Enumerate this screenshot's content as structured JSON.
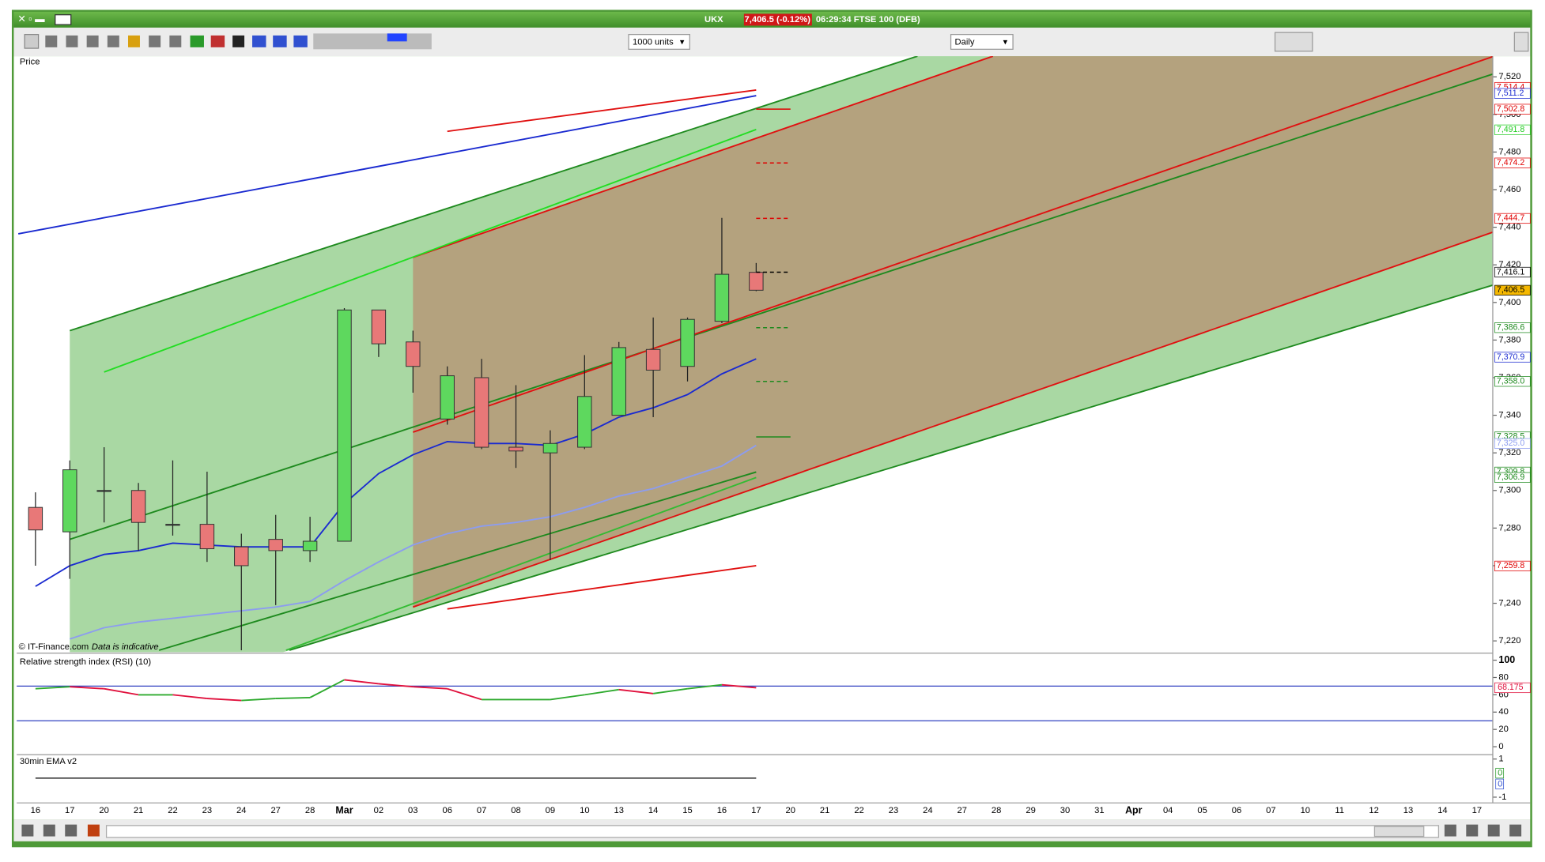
{
  "window": {
    "title": "UKX",
    "price": "7,406.5 (-0.12%)",
    "info": "06:29:34 FTSE 100 (DFB)"
  },
  "toolbar": {
    "units": "1000 units",
    "period": "Daily"
  },
  "footer": {
    "copyright": "© IT-Finance.com",
    "note": "Data is indicative"
  },
  "chart_data": [
    {
      "type": "candlestick",
      "title": "Price",
      "categories": [
        "16",
        "17",
        "20",
        "21",
        "22",
        "23",
        "24",
        "27",
        "28",
        "Mar",
        "02",
        "03",
        "06",
        "07",
        "08",
        "09",
        "10",
        "13",
        "14",
        "15",
        "16",
        "17",
        "20",
        "21",
        "22",
        "23",
        "24",
        "27",
        "28",
        "29",
        "30",
        "31",
        "Apr",
        "04",
        "05",
        "06",
        "07",
        "10",
        "11",
        "12",
        "13",
        "14",
        "17"
      ],
      "open": [
        7291,
        7278,
        7300,
        7300,
        7282,
        7282,
        7270,
        7274,
        7268,
        7273,
        7396,
        7379,
        7338,
        7360,
        7323,
        7320,
        7323,
        7340,
        7375,
        7366,
        7390,
        7416,
        null,
        null,
        null,
        null,
        null,
        null,
        null,
        null,
        null,
        null,
        null,
        null,
        null,
        null,
        null,
        null,
        null,
        null,
        null,
        null,
        null
      ],
      "high": [
        7299,
        7316,
        7323,
        7304,
        7316,
        7310,
        7277,
        7287,
        7286,
        7397,
        7396,
        7385,
        7366,
        7370,
        7356,
        7332,
        7372,
        7379,
        7392,
        7392,
        7445,
        7421,
        null,
        null,
        null,
        null,
        null,
        null,
        null,
        null,
        null,
        null,
        null,
        null,
        null,
        null,
        null,
        null,
        null,
        null,
        null,
        null,
        null
      ],
      "low": [
        7260,
        7253,
        7283,
        7268,
        7276,
        7262,
        7215,
        7239,
        7262,
        7273,
        7371,
        7352,
        7335,
        7322,
        7312,
        7263,
        7322,
        7340,
        7339,
        7358,
        7389,
        7406,
        null,
        null,
        null,
        null,
        null,
        null,
        null,
        null,
        null,
        null,
        null,
        null,
        null,
        null,
        null,
        null,
        null,
        null,
        null,
        null,
        null
      ],
      "close": [
        7279,
        7311,
        7300,
        7283,
        7282,
        7269,
        7260,
        7268,
        7273,
        7396,
        7378,
        7366,
        7361,
        7323,
        7321,
        7325,
        7350,
        7376,
        7364,
        7391,
        7415,
        7406.5,
        null,
        null,
        null,
        null,
        null,
        null,
        null,
        null,
        null,
        null,
        null,
        null,
        null,
        null,
        null,
        null,
        null,
        null,
        null,
        null,
        null
      ],
      "up_color": "#5ed85e",
      "down_color": "#e87878",
      "series": [
        {
          "color": "#1a2ad0",
          "values": [
            7249,
            7260,
            7266,
            7268,
            7272,
            7271,
            7270,
            7270,
            7270,
            7293,
            7309,
            7319,
            7326,
            7325,
            7325,
            7324,
            7330,
            7339,
            7344,
            7351,
            7362,
            7370,
            null,
            null,
            null,
            null,
            null,
            null,
            null,
            null,
            null,
            null,
            null,
            null,
            null,
            null,
            null,
            null,
            null,
            null,
            null,
            null,
            null
          ]
        },
        {
          "color": "#8c9cf0",
          "values": [
            null,
            7221,
            7227,
            7230,
            7232,
            7234,
            7236,
            7238,
            7241,
            7252,
            7262,
            7271,
            7277,
            7281,
            7283,
            7286,
            7291,
            7297,
            7301,
            7307,
            7313,
            7324,
            null,
            null,
            null,
            null,
            null,
            null,
            null,
            null,
            null,
            null,
            null,
            null,
            null,
            null,
            null,
            null,
            null,
            null,
            null,
            null,
            null
          ]
        }
      ],
      "trendlines": [
        {
          "color": "#1e8a1e",
          "points": [
            [
              1,
              7385
            ],
            [
              25.7,
              7531
            ]
          ]
        },
        {
          "color": "#1e8a1e",
          "points": [
            [
              7.4,
              7215
            ],
            [
              42.5,
              7409.4
            ]
          ]
        },
        {
          "color": "#1e8a1e",
          "points": [
            [
              1,
              7274
            ],
            [
              42.5,
              7521.7
            ]
          ]
        },
        {
          "color": "#e01010",
          "points": [
            [
              11,
              7424
            ],
            [
              27.9,
              7531
            ]
          ]
        },
        {
          "color": "#e01010",
          "points": [
            [
              11,
              7331
            ],
            [
              42.5,
              7531
            ]
          ]
        },
        {
          "color": "#e01010",
          "points": [
            [
              11,
              7238
            ],
            [
              42.5,
              7437.6
            ]
          ]
        },
        {
          "color": "#22dd22",
          "points": [
            [
              2,
              7363
            ],
            [
              21,
              7492
            ]
          ]
        },
        {
          "color": "#e01010",
          "points": [
            [
              12,
              7491
            ],
            [
              21,
              7513
            ]
          ]
        },
        {
          "color": "#1a2ad0",
          "points": [
            [
              -0.5,
              7436.5
            ],
            [
              21,
              7510
            ]
          ]
        },
        {
          "color": "#e01010",
          "points": [
            [
              12,
              7237
            ],
            [
              21,
              7260
            ]
          ]
        },
        {
          "color": "#1e8a1e",
          "points": [
            [
              3.6,
              7215
            ],
            [
              21,
              7309.8
            ]
          ]
        },
        {
          "color": "#33bb33",
          "points": [
            [
              7.3,
              7215
            ],
            [
              21,
              7306.9
            ]
          ]
        }
      ],
      "green_fill": "#a9d8a3",
      "brown_fill": "#b4a27e",
      "levels": [
        {
          "value": 7514.4,
          "label": "7,514.4",
          "color": "#e00000"
        },
        {
          "value": 7511.2,
          "label": "7,511.2",
          "color": "#1a2ad0"
        },
        {
          "value": 7502.8,
          "label": "7,502.8",
          "color": "#e00000",
          "marker": "solid"
        },
        {
          "value": 7491.8,
          "label": "7,491.8",
          "color": "#22cc22"
        },
        {
          "value": 7474.2,
          "label": "7,474.2",
          "color": "#e00000",
          "marker": "dashed"
        },
        {
          "value": 7444.7,
          "label": "7,444.7",
          "color": "#e00000",
          "marker": "dashed"
        },
        {
          "value": 7416.1,
          "label": "7,416.1",
          "color": "#000000",
          "marker": "dashed"
        },
        {
          "value": 7406.5,
          "label": "7,406.5",
          "color": "#000000",
          "background": "#f5b800"
        },
        {
          "value": 7386.6,
          "label": "7,386.6",
          "color": "#1e8a1e",
          "marker": "dashed"
        },
        {
          "value": 7370.9,
          "label": "7,370.9",
          "color": "#1a2ad0"
        },
        {
          "value": 7358.0,
          "label": "7,358.0",
          "color": "#1e8a1e",
          "marker": "dashed"
        },
        {
          "value": 7328.5,
          "label": "7,328.5",
          "color": "#1e8a1e",
          "marker": "solid"
        },
        {
          "value": 7325.0,
          "label": "7,325.0",
          "color": "#8c9cf0"
        },
        {
          "value": 7309.8,
          "label": "7,309.8",
          "color": "#1e8a1e"
        },
        {
          "value": 7306.9,
          "label": "7,306.9",
          "color": "#1e8a1e"
        },
        {
          "value": 7259.8,
          "label": "7,259.8",
          "color": "#e00000"
        }
      ],
      "ylim": [
        7214,
        7531
      ],
      "yticks": [
        {
          "value": 7220,
          "label": "7,220"
        },
        {
          "value": 7240,
          "label": "7,240"
        },
        {
          "value": 7260,
          "label": "7,260"
        },
        {
          "value": 7280,
          "label": "7,280"
        },
        {
          "value": 7300,
          "label": "7,300"
        },
        {
          "value": 7320,
          "label": "7,320"
        },
        {
          "value": 7340,
          "label": "7,340"
        },
        {
          "value": 7360,
          "label": "7,360"
        },
        {
          "value": 7380,
          "label": "7,380"
        },
        {
          "value": 7400,
          "label": "7,400"
        },
        {
          "value": 7420,
          "label": "7,420"
        },
        {
          "value": 7440,
          "label": "7,440"
        },
        {
          "value": 7460,
          "label": "7,460"
        },
        {
          "value": 7480,
          "label": "7,480"
        },
        {
          "value": 7500,
          "label": "7,500"
        },
        {
          "value": 7520,
          "label": "7,520"
        }
      ]
    },
    {
      "type": "line",
      "title": "Relative strength index (RSI) (10)",
      "values": [
        67,
        69.3,
        67,
        60,
        60,
        55.7,
        53.4,
        55.7,
        56.8,
        77.3,
        72.7,
        69.3,
        67,
        54.5,
        54.5,
        54.5,
        60,
        66,
        61.4,
        67,
        71.6,
        68.175
      ],
      "up_color": "#2eaa2e",
      "down_color": "#e0103c",
      "reference_lines": [
        70,
        30
      ],
      "reference_color": "#3040c0",
      "current": {
        "value": 68.175,
        "color": "#e0103c"
      },
      "ylim": [
        -8,
        107
      ],
      "yticks": [
        0,
        20,
        40,
        60,
        80,
        100
      ]
    },
    {
      "type": "line",
      "title": "30min EMA v2",
      "values": [
        0,
        0,
        0,
        0,
        0,
        0,
        0,
        0,
        0,
        0,
        0,
        0,
        0,
        0,
        0,
        0,
        0,
        0,
        0,
        0,
        0,
        0
      ],
      "color": "#000000",
      "badges": [
        {
          "value": 0,
          "color": "#2a9a2a"
        },
        {
          "value": 0,
          "color": "#3050d0"
        }
      ],
      "ylim": [
        -1.3,
        1.18
      ],
      "yticks": [
        1,
        -1
      ]
    }
  ]
}
